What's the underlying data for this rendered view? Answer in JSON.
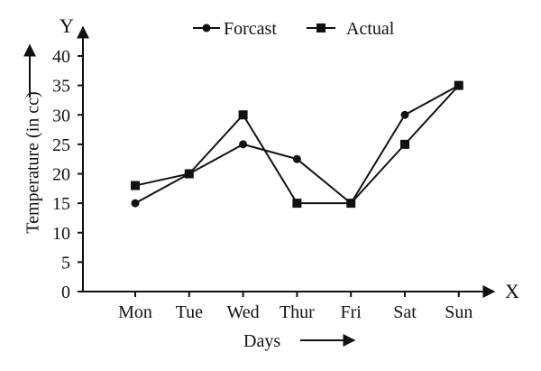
{
  "chart_data": {
    "type": "line",
    "categories": [
      "Mon",
      "Tue",
      "Wed",
      "Thur",
      "Fri",
      "Sat",
      "Sun"
    ],
    "series": [
      {
        "name": "Forcast",
        "marker": "circle",
        "values": [
          15,
          20,
          25,
          22.5,
          15,
          30,
          35
        ]
      },
      {
        "name": "Actual",
        "marker": "square",
        "values": [
          18,
          20,
          30,
          15,
          15,
          25,
          35
        ]
      }
    ],
    "yticks": [
      0,
      5,
      10,
      15,
      20,
      25,
      30,
      35,
      40
    ],
    "ylim": [
      0,
      40
    ],
    "xlabel": "Days",
    "ylabel": "Temperature (in cc)",
    "x_axis_letter": "X",
    "y_axis_letter": "Y",
    "legend_position": "top",
    "grid": false,
    "color": "#111111"
  }
}
